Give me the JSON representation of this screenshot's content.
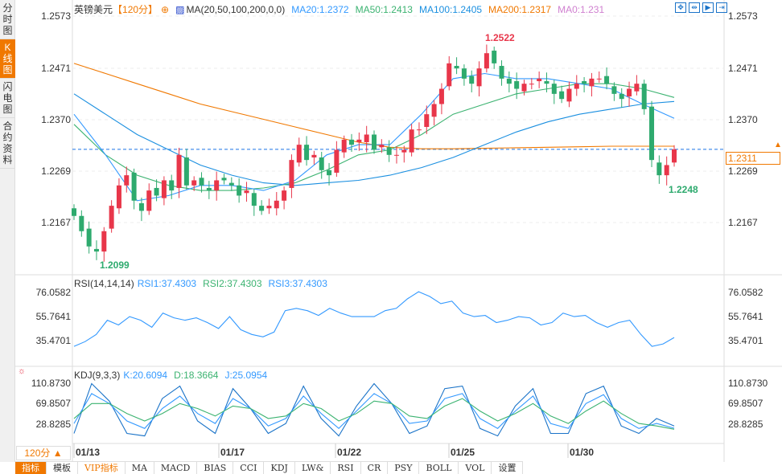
{
  "sidebar": {
    "tabs": [
      {
        "label": "分时图"
      },
      {
        "label": "K线图",
        "active": true
      },
      {
        "label": "闪电图"
      },
      {
        "label": "合约资料"
      }
    ]
  },
  "header": {
    "symbol": "英镑美元",
    "period": "【120分】",
    "ma_label": "MA(20,50,100,200,0,0)",
    "ma20": "MA20:1.2372",
    "ma50": "MA50:1.2413",
    "ma100": "MA100:1.2405",
    "ma200": "MA200:1.2317",
    "ma0": "MA0:1.231"
  },
  "colors": {
    "ma20": "#3399ff",
    "ma50": "#3cb371",
    "ma100": "#1a8fe0",
    "ma200": "#f07800",
    "ma0": "#d080d0",
    "up": "#e8364a",
    "down": "#2eaa6e"
  },
  "price_axis": [
    "1.2573",
    "1.2471",
    "1.2370",
    "1.2269",
    "1.2167"
  ],
  "current_price": "1.2311",
  "annotations": {
    "high": "1.2522",
    "low": "1.2099",
    "recent_low": "1.2248"
  },
  "rsi": {
    "label": "RSI(14,14,14)",
    "rsi1": "RSI1:37.4303",
    "rsi2": "RSI2:37.4303",
    "rsi3": "RSI3:37.4303",
    "axis": [
      "76.0582",
      "55.7641",
      "35.4701"
    ]
  },
  "kdj": {
    "label": "KDJ(9,3,3)",
    "k": "K:20.6094",
    "d": "D:18.3664",
    "j": "J:25.0954",
    "axis": [
      "110.8730",
      "69.8507",
      "28.8285"
    ]
  },
  "dates": [
    "01/13",
    "01/17",
    "01/22",
    "01/25",
    "01/30"
  ],
  "period_select": "120分 ▲",
  "toolbar": [
    "指标",
    "模板",
    "VIP指标",
    "MA",
    "MACD",
    "BIAS",
    "CCI",
    "KDJ",
    "LW&",
    "RSI",
    "CR",
    "PSY",
    "BOLL",
    "VOL",
    "设置"
  ],
  "chart_data": {
    "type": "candlestick",
    "closes": [
      1.218,
      1.215,
      1.212,
      1.211,
      1.215,
      1.22,
      1.224,
      1.226,
      1.221,
      1.219,
      1.223,
      1.222,
      1.225,
      1.223,
      1.23,
      1.224,
      1.225,
      1.224,
      1.223,
      1.225,
      1.225,
      1.224,
      1.222,
      1.223,
      1.22,
      1.219,
      1.22,
      1.221,
      1.223,
      1.229,
      1.232,
      1.229,
      1.23,
      1.227,
      1.226,
      1.231,
      1.233,
      1.232,
      1.233,
      1.234,
      1.231,
      1.232,
      1.23,
      1.23,
      1.231,
      1.235,
      1.235,
      1.238,
      1.24,
      1.243,
      1.248,
      1.247,
      1.245,
      1.244,
      1.247,
      1.25,
      1.248,
      1.245,
      1.244,
      1.243,
      1.244,
      1.244,
      1.245,
      1.244,
      1.242,
      1.241,
      1.243,
      1.244,
      1.244,
      1.245,
      1.245,
      1.244,
      1.242,
      1.241,
      1.243,
      1.244,
      1.239,
      1.229,
      1.226,
      1.228,
      1.2311
    ],
    "ma20": [
      1.238,
      1.23,
      1.221,
      1.222,
      1.224,
      1.224,
      1.223,
      1.225,
      1.23,
      1.232,
      1.232,
      1.238,
      1.245,
      1.246,
      1.245,
      1.245,
      1.244,
      1.243,
      1.24,
      1.2372
    ],
    "ma50": [
      1.236,
      1.23,
      1.226,
      1.224,
      1.223,
      1.223,
      1.2235,
      1.2245,
      1.227,
      1.23,
      1.231,
      1.234,
      1.238,
      1.24,
      1.242,
      1.243,
      1.244,
      1.244,
      1.243,
      1.2413
    ],
    "ma100": [
      1.242,
      1.238,
      1.234,
      1.231,
      1.228,
      1.226,
      1.2245,
      1.224,
      1.2245,
      1.225,
      1.226,
      1.2275,
      1.2295,
      1.232,
      1.2345,
      1.2365,
      1.238,
      1.239,
      1.24,
      1.2405
    ],
    "ma200": [
      1.248,
      1.246,
      1.244,
      1.242,
      1.24,
      1.2385,
      1.237,
      1.2355,
      1.234,
      1.2325,
      1.2315,
      1.2312,
      1.2312,
      1.2313,
      1.2314,
      1.2315,
      1.2316,
      1.2317,
      1.2317,
      1.2317
    ],
    "rsi": [
      30,
      34,
      40,
      52,
      48,
      55,
      52,
      46,
      58,
      54,
      52,
      54,
      50,
      45,
      55,
      44,
      40,
      38,
      42,
      60,
      62,
      60,
      56,
      62,
      58,
      55,
      55,
      55,
      60,
      62,
      70,
      76,
      72,
      66,
      68,
      58,
      55,
      56,
      50,
      52,
      55,
      54,
      48,
      50,
      58,
      55,
      56,
      50,
      46,
      50,
      52,
      40,
      30,
      32,
      37.43
    ],
    "kdj_k": [
      30,
      90,
      70,
      35,
      20,
      60,
      85,
      50,
      30,
      80,
      60,
      25,
      40,
      85,
      50,
      20,
      55,
      90,
      70,
      30,
      35,
      80,
      90,
      40,
      20,
      55,
      85,
      30,
      20,
      70,
      88,
      40,
      20,
      30,
      20.6
    ],
    "kdj_d": [
      40,
      70,
      70,
      50,
      35,
      50,
      70,
      60,
      45,
      65,
      60,
      40,
      45,
      70,
      60,
      35,
      50,
      75,
      70,
      45,
      40,
      65,
      80,
      55,
      35,
      50,
      70,
      45,
      30,
      55,
      75,
      50,
      30,
      25,
      18.4
    ],
    "kdj_j": [
      10,
      110,
      75,
      10,
      5,
      80,
      105,
      35,
      10,
      100,
      60,
      10,
      30,
      105,
      40,
      5,
      65,
      110,
      70,
      10,
      25,
      100,
      105,
      20,
      5,
      65,
      100,
      10,
      10,
      90,
      105,
      25,
      10,
      40,
      25.1
    ]
  }
}
